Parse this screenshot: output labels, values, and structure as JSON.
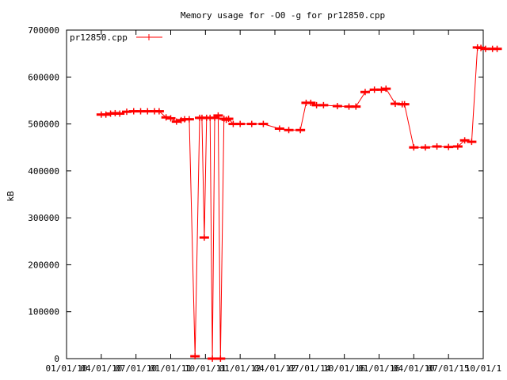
{
  "chart_data": {
    "type": "line",
    "title": "Memory usage for -O0 -g for pr12850.cpp",
    "xlabel": "",
    "ylabel": "kB",
    "ylim": [
      0,
      700000
    ],
    "xlim": [
      0,
      18
    ],
    "grid": false,
    "legend": {
      "position": "top-left",
      "entries": [
        "pr12850.cpp"
      ]
    },
    "y_ticks": [
      {
        "value": 0,
        "label": "0"
      },
      {
        "value": 100000,
        "label": "100000"
      },
      {
        "value": 200000,
        "label": "200000"
      },
      {
        "value": 300000,
        "label": "300000"
      },
      {
        "value": 400000,
        "label": "400000"
      },
      {
        "value": 500000,
        "label": "500000"
      },
      {
        "value": 600000,
        "label": "600000"
      },
      {
        "value": 700000,
        "label": "700000"
      }
    ],
    "x_ticks": [
      {
        "value": 0,
        "label": "01/01/10"
      },
      {
        "value": 1.5,
        "label": "04/01/10"
      },
      {
        "value": 3,
        "label": "07/01/10"
      },
      {
        "value": 4.5,
        "label": "01/01/11"
      },
      {
        "value": 6,
        "label": "10/01/11"
      },
      {
        "value": 7.5,
        "label": "01/01/12"
      },
      {
        "value": 9,
        "label": "04/01/12"
      },
      {
        "value": 10.5,
        "label": "07/01/14"
      },
      {
        "value": 12,
        "label": "10/01/16"
      },
      {
        "value": 13.5,
        "label": "01/01/16"
      },
      {
        "value": 15,
        "label": "04/01/10"
      },
      {
        "value": 16.5,
        "label": "07/01/15"
      },
      {
        "value": 18,
        "label": "10/01/1"
      }
    ],
    "series": [
      {
        "name": "pr12850.cpp",
        "color": "#ff0000",
        "x": [
          1.5,
          1.7,
          1.9,
          2.1,
          2.3,
          2.6,
          2.9,
          3.2,
          3.5,
          3.8,
          4.0,
          4.3,
          4.5,
          4.75,
          4.95,
          5.1,
          5.3,
          5.55,
          5.75,
          5.85,
          5.95,
          6.05,
          6.2,
          6.3,
          6.4,
          6.55,
          6.65,
          6.8,
          6.9,
          7.0,
          7.2,
          7.5,
          8.0,
          8.5,
          9.2,
          9.6,
          10.1,
          10.35,
          10.55,
          10.8,
          11.1,
          11.7,
          12.2,
          12.5,
          12.9,
          13.3,
          13.6,
          13.8,
          14.2,
          14.5,
          14.6,
          15.0,
          15.5,
          16.0,
          16.5,
          16.9,
          17.2,
          17.5,
          17.75,
          17.9,
          18.1,
          18.4,
          18.6
        ],
        "y": [
          520000,
          520000,
          522000,
          523000,
          522000,
          526000,
          527000,
          527000,
          527000,
          527000,
          527000,
          514000,
          512000,
          505000,
          508000,
          510000,
          510000,
          5000,
          513000,
          513000,
          258000,
          513000,
          513000,
          0,
          513000,
          518000,
          0,
          511000,
          509000,
          511000,
          500000,
          500000,
          500000,
          500000,
          490000,
          487000,
          487000,
          545000,
          545000,
          540000,
          540000,
          538000,
          537000,
          537000,
          568000,
          573000,
          573000,
          575000,
          543000,
          542000,
          542000,
          450000,
          450000,
          452000,
          451000,
          452000,
          465000,
          462000,
          663000,
          662000,
          660000,
          660000,
          660000
        ]
      }
    ]
  }
}
